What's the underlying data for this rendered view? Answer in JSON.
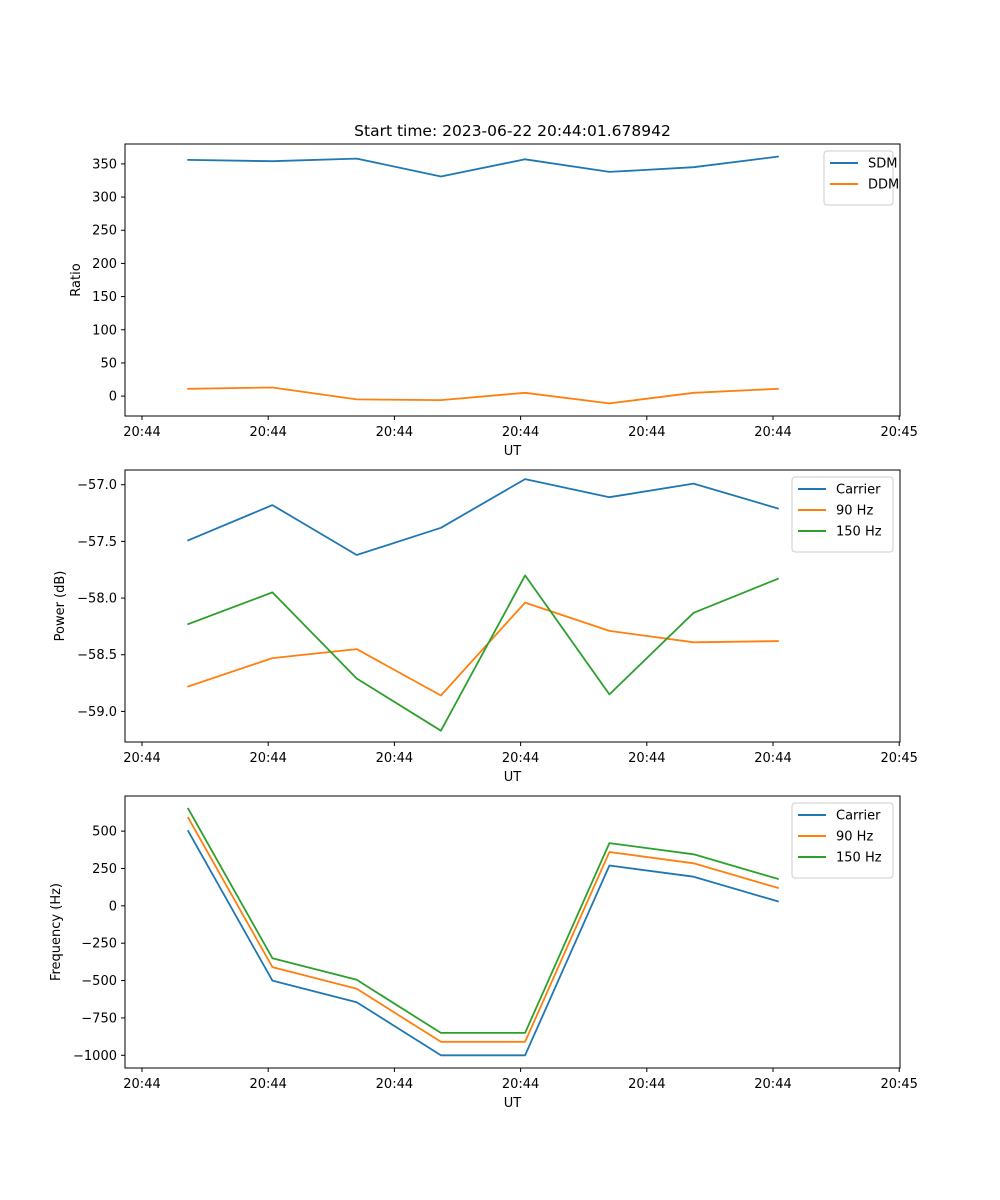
{
  "figure": {
    "title": "Start time: 2023-06-22 20:44:01.678942"
  },
  "chart_data": [
    {
      "type": "line",
      "title": "Start time: 2023-06-22 20:44:01.678942",
      "xlabel": "UT",
      "ylabel": "Ratio",
      "x_tick_labels": [
        "20:44",
        "20:44",
        "20:44",
        "20:44",
        "20:44",
        "20:44",
        "20:45"
      ],
      "x": [
        1,
        2,
        3,
        4,
        5,
        6,
        7,
        8
      ],
      "xlim": [
        0.25,
        9.45
      ],
      "ylim": [
        -30,
        380
      ],
      "y_ticks": [
        0,
        50,
        100,
        150,
        200,
        250,
        300,
        350
      ],
      "legend_position": "top-right",
      "series": [
        {
          "name": "SDM",
          "color": "#1f77b4",
          "values": [
            356,
            354,
            358,
            331,
            357,
            338,
            345,
            361
          ]
        },
        {
          "name": "DDM",
          "color": "#ff7f0e",
          "values": [
            11,
            13,
            -5,
            -6,
            5,
            -11,
            5,
            11
          ]
        }
      ]
    },
    {
      "type": "line",
      "xlabel": "UT",
      "ylabel": "Power (dB)",
      "x_tick_labels": [
        "20:44",
        "20:44",
        "20:44",
        "20:44",
        "20:44",
        "20:44",
        "20:45"
      ],
      "x": [
        1,
        2,
        3,
        4,
        5,
        6,
        7,
        8
      ],
      "xlim": [
        0.25,
        9.45
      ],
      "ylim": [
        -59.27,
        -56.87
      ],
      "y_ticks": [
        -59.0,
        -58.5,
        -58.0,
        -57.5,
        -57.0
      ],
      "y_tick_labels": [
        "−59.0",
        "−58.5",
        "−58.0",
        "−57.5",
        "−57.0"
      ],
      "legend_position": "top-right",
      "series": [
        {
          "name": "Carrier",
          "color": "#1f77b4",
          "values": [
            -57.49,
            -57.18,
            -57.62,
            -57.38,
            -56.95,
            -57.11,
            -56.99,
            -57.21
          ]
        },
        {
          "name": "90 Hz",
          "color": "#ff7f0e",
          "values": [
            -58.78,
            -58.53,
            -58.45,
            -58.86,
            -58.04,
            -58.29,
            -58.39,
            -58.38
          ]
        },
        {
          "name": "150 Hz",
          "color": "#2ca02c",
          "values": [
            -58.23,
            -57.95,
            -58.71,
            -59.17,
            -57.8,
            -58.85,
            -58.13,
            -57.83
          ]
        }
      ]
    },
    {
      "type": "line",
      "xlabel": "UT",
      "ylabel": "Frequency (Hz)",
      "x_tick_labels": [
        "20:44",
        "20:44",
        "20:44",
        "20:44",
        "20:44",
        "20:44",
        "20:45"
      ],
      "x": [
        1,
        2,
        3,
        4,
        5,
        6,
        7,
        8
      ],
      "xlim": [
        0.25,
        9.45
      ],
      "ylim": [
        -1085,
        735
      ],
      "y_ticks": [
        -1000,
        -750,
        -500,
        -250,
        0,
        250,
        500
      ],
      "y_tick_labels": [
        "−1000",
        "−750",
        "−500",
        "−250",
        "0",
        "250",
        "500"
      ],
      "legend_position": "top-right",
      "series": [
        {
          "name": "Carrier",
          "color": "#1f77b4",
          "values": [
            500,
            -500,
            -645,
            -1000,
            -1000,
            270,
            195,
            30
          ]
        },
        {
          "name": "90 Hz",
          "color": "#ff7f0e",
          "values": [
            590,
            -410,
            -555,
            -910,
            -910,
            360,
            285,
            120
          ]
        },
        {
          "name": "150 Hz",
          "color": "#2ca02c",
          "values": [
            650,
            -350,
            -495,
            -850,
            -850,
            420,
            345,
            180
          ]
        }
      ]
    }
  ]
}
